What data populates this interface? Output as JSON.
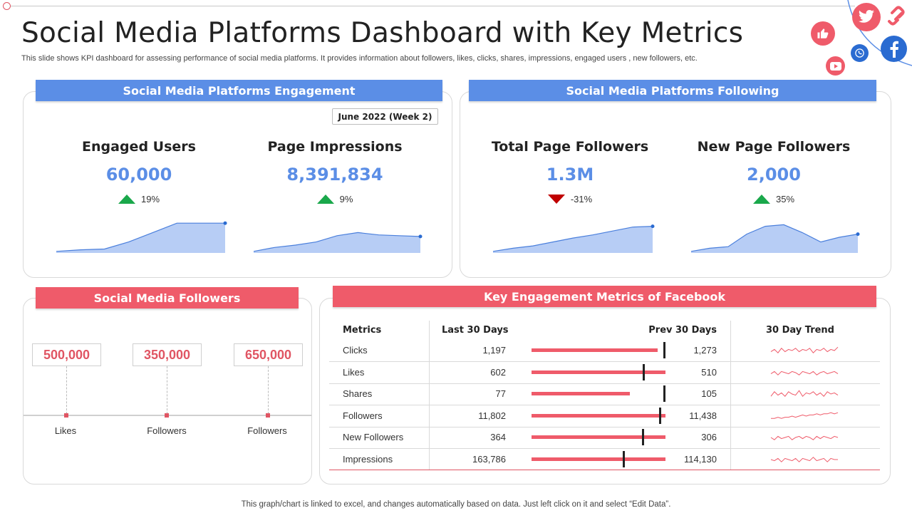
{
  "title": "Social Media Platforms Dashboard with Key Metrics",
  "subtitle": "This slide shows KPI dashboard for assessing performance of social media platforms. It provides information about followers, likes, clicks, shares, impressions, engaged users , new followers, etc.",
  "footer": "This graph/chart is linked to excel,  and changes automatically based on data. Just left click on it and select “Edit Data”.",
  "colors": {
    "blue": "#5b8ee6",
    "red": "#ef5b6a",
    "up": "#1aa84b",
    "down": "#c00000",
    "area": "#b7cdf5"
  },
  "icons": [
    "thumbs-up-icon",
    "twitter-icon",
    "link-icon",
    "whatsapp-icon",
    "facebook-icon",
    "youtube-icon"
  ],
  "engagement": {
    "header": "Social Media Platforms Engagement",
    "period": "June 2022 (Week 2)",
    "kpis": [
      {
        "label": "Engaged Users",
        "value": "60,000",
        "delta": "19%",
        "direction": "up",
        "trend": [
          2,
          4,
          5,
          14,
          26,
          38,
          38,
          38
        ]
      },
      {
        "label": "Page Impressions",
        "value": "8,391,834",
        "delta": "9%",
        "direction": "up",
        "trend": [
          2,
          7,
          10,
          14,
          22,
          26,
          23,
          22,
          21
        ]
      }
    ]
  },
  "following": {
    "header": "Social Media Platforms Following",
    "kpis": [
      {
        "label": "Total Page Followers",
        "value": "1.3M",
        "delta": "-31%",
        "direction": "down",
        "trend": [
          2,
          6,
          9,
          14,
          19,
          23,
          28,
          33,
          34
        ]
      },
      {
        "label": "New Page Followers",
        "value": "2,000",
        "delta": "35%",
        "direction": "up",
        "trend": [
          2,
          6,
          8,
          24,
          34,
          36,
          26,
          14,
          20,
          24
        ]
      }
    ]
  },
  "followers": {
    "header": "Social Media Followers",
    "items": [
      {
        "value": "500,000",
        "label": "Likes"
      },
      {
        "value": "350,000",
        "label": "Followers"
      },
      {
        "value": "650,000",
        "label": "Followers"
      }
    ]
  },
  "facebook": {
    "header": "Key Engagement Metrics of Facebook",
    "columns": [
      "Metrics",
      "Last 30 Days",
      "Prev 30 Days",
      "30 Day Trend"
    ],
    "rows": [
      {
        "metric": "Clicks",
        "last": "1,197",
        "prev": "1,273",
        "last_num": 1197,
        "prev_num": 1273
      },
      {
        "metric": "Likes",
        "last": "602",
        "prev": "510",
        "last_num": 602,
        "prev_num": 510
      },
      {
        "metric": "Shares",
        "last": "77",
        "prev": "105",
        "last_num": 77,
        "prev_num": 105
      },
      {
        "metric": "Followers",
        "last": "11,802",
        "prev": "11,438",
        "last_num": 11802,
        "prev_num": 11438
      },
      {
        "metric": "New Followers",
        "last": "364",
        "prev": "306",
        "last_num": 364,
        "prev_num": 306
      },
      {
        "metric": "Impressions",
        "last": "163,786",
        "prev": "114,130",
        "last_num": 163786,
        "prev_num": 114130
      }
    ],
    "sparklines": [
      [
        4,
        6,
        3,
        7,
        4,
        6,
        5,
        7,
        4,
        6,
        5,
        7,
        3,
        6,
        5,
        7,
        4,
        6,
        5,
        8
      ],
      [
        4,
        6,
        3,
        6,
        5,
        4,
        6,
        5,
        3,
        6,
        5,
        4,
        6,
        3,
        5,
        6,
        4,
        5,
        6,
        4
      ],
      [
        3,
        7,
        4,
        6,
        3,
        7,
        5,
        4,
        8,
        3,
        6,
        5,
        7,
        4,
        6,
        3,
        7,
        5,
        6,
        4
      ],
      [
        3,
        3,
        4,
        3,
        4,
        4,
        5,
        4,
        5,
        6,
        5,
        6,
        6,
        7,
        6,
        7,
        7,
        8,
        7,
        8
      ],
      [
        5,
        3,
        6,
        4,
        5,
        6,
        3,
        5,
        6,
        4,
        6,
        5,
        3,
        6,
        4,
        6,
        5,
        4,
        6,
        5
      ],
      [
        5,
        4,
        6,
        3,
        6,
        5,
        4,
        6,
        3,
        6,
        5,
        4,
        7,
        4,
        5,
        6,
        3,
        6,
        5,
        5
      ]
    ]
  }
}
